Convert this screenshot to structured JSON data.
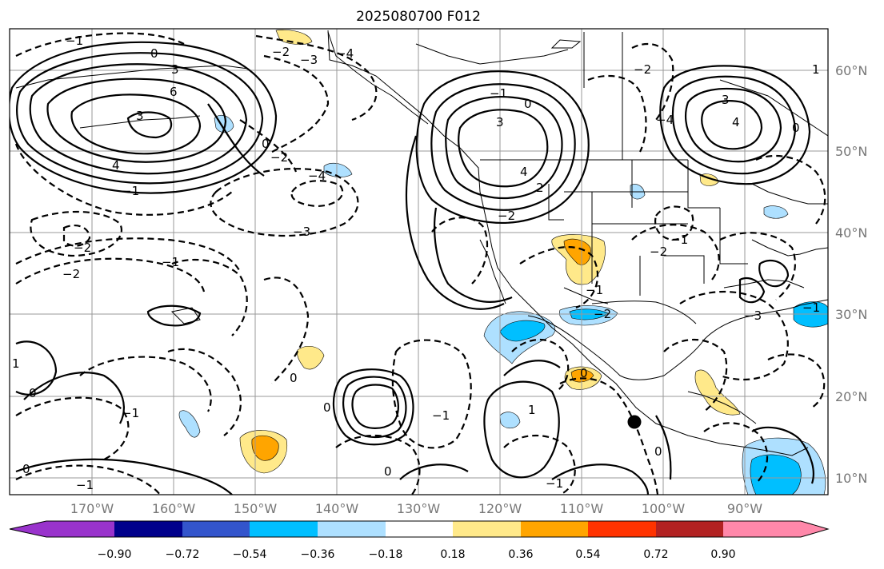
{
  "title": "2025080700 F012",
  "lon_labels": [
    "170°W",
    "160°W",
    "150°W",
    "140°W",
    "130°W",
    "120°W",
    "110°W",
    "100°W",
    "90°W"
  ],
  "lat_labels": [
    "60°N",
    "50°N",
    "40°N",
    "30°N",
    "20°N",
    "10°N"
  ],
  "colorbar": {
    "ticks": [
      "−0.90",
      "−0.72",
      "−0.54",
      "−0.36",
      "−0.18",
      "0.18",
      "0.36",
      "0.54",
      "0.72",
      "0.90"
    ],
    "colors": [
      "#9933cc",
      "#00008b",
      "#3355cc",
      "#00bfff",
      "#aee0ff",
      "#ffffff",
      "#ffe98a",
      "#ffa500",
      "#ff3300",
      "#b22222",
      "#ff88aa"
    ]
  },
  "contour_labels": {
    "c1": "−1",
    "c2": "0",
    "c3": "3",
    "c4": "6",
    "c5": "−2",
    "c6": "−3",
    "c7": "−4",
    "c8": "−3",
    "c9": "−2",
    "c10": "−1",
    "c11": "−2",
    "c12": "3",
    "c13": "−4",
    "c14": "−2",
    "c15": "4",
    "c16": "−1",
    "c17": "0",
    "c18": "4",
    "c19": "3",
    "c20": "2",
    "c21": "−2",
    "c22": "−2",
    "c23": "4",
    "c24": "3",
    "c25": "0",
    "c26": "0",
    "c27": "−1",
    "c28": "−2",
    "c29": "−1",
    "c30": "0",
    "c31": "0",
    "c32": "0",
    "c33": "1",
    "c34": "−1",
    "c35": "0",
    "c36": "−1",
    "c37": "1",
    "c38": "−1",
    "c39": "0",
    "c40": "−1",
    "c41": "−1",
    "c42": "−2",
    "c43": "−4",
    "c44": "1",
    "c45": "0",
    "c46": "−3",
    "c47": "−1",
    "c48": "0"
  }
}
